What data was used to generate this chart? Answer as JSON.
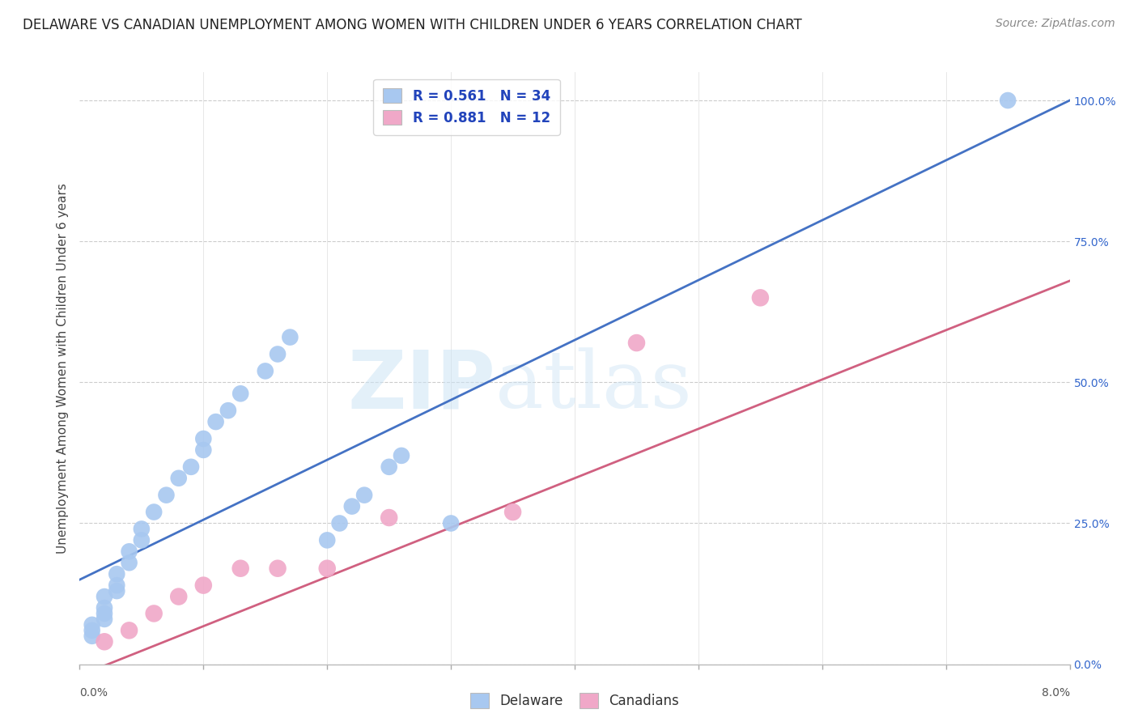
{
  "title": "DELAWARE VS CANADIAN UNEMPLOYMENT AMONG WOMEN WITH CHILDREN UNDER 6 YEARS CORRELATION CHART",
  "source": "Source: ZipAtlas.com",
  "ylabel": "Unemployment Among Women with Children Under 6 years",
  "ylabel_right_ticks": [
    "0.0%",
    "25.0%",
    "50.0%",
    "75.0%",
    "100.0%"
  ],
  "ylabel_right_vals": [
    0.0,
    0.25,
    0.5,
    0.75,
    1.0
  ],
  "xlim": [
    0.0,
    0.08
  ],
  "ylim": [
    0.0,
    1.05
  ],
  "r_delaware": 0.561,
  "n_delaware": 34,
  "r_canadians": 0.881,
  "n_canadians": 12,
  "delaware_color": "#a8c8f0",
  "canadian_color": "#f0a8c8",
  "delaware_line_color": "#4472c4",
  "canadian_line_color": "#d06080",
  "legend_r_color": "#2244bb",
  "background_color": "#ffffff",
  "watermark_text": "ZIPatlas",
  "delaware_scatter": {
    "x": [
      0.001,
      0.001,
      0.001,
      0.002,
      0.002,
      0.002,
      0.002,
      0.003,
      0.003,
      0.003,
      0.004,
      0.004,
      0.005,
      0.005,
      0.006,
      0.007,
      0.008,
      0.009,
      0.01,
      0.01,
      0.011,
      0.012,
      0.013,
      0.015,
      0.016,
      0.017,
      0.02,
      0.021,
      0.022,
      0.023,
      0.025,
      0.026,
      0.03,
      0.075
    ],
    "y": [
      0.05,
      0.06,
      0.07,
      0.08,
      0.09,
      0.1,
      0.12,
      0.13,
      0.14,
      0.16,
      0.18,
      0.2,
      0.22,
      0.24,
      0.27,
      0.3,
      0.33,
      0.35,
      0.38,
      0.4,
      0.43,
      0.45,
      0.48,
      0.52,
      0.55,
      0.58,
      0.22,
      0.25,
      0.28,
      0.3,
      0.35,
      0.37,
      0.25,
      1.0
    ]
  },
  "canadian_scatter": {
    "x": [
      0.002,
      0.004,
      0.006,
      0.008,
      0.01,
      0.013,
      0.016,
      0.02,
      0.025,
      0.035,
      0.045,
      0.055
    ],
    "y": [
      0.04,
      0.06,
      0.09,
      0.12,
      0.14,
      0.17,
      0.17,
      0.17,
      0.26,
      0.27,
      0.57,
      0.65
    ]
  },
  "title_fontsize": 12,
  "source_fontsize": 10,
  "tick_fontsize": 10,
  "legend_fontsize": 12,
  "ylabel_fontsize": 11,
  "delaware_line": {
    "x0": 0.0,
    "y0": 0.15,
    "x1": 0.08,
    "y1": 1.0
  },
  "canadian_line": {
    "x0": 0.0,
    "y0": -0.02,
    "x1": 0.08,
    "y1": 0.68
  }
}
